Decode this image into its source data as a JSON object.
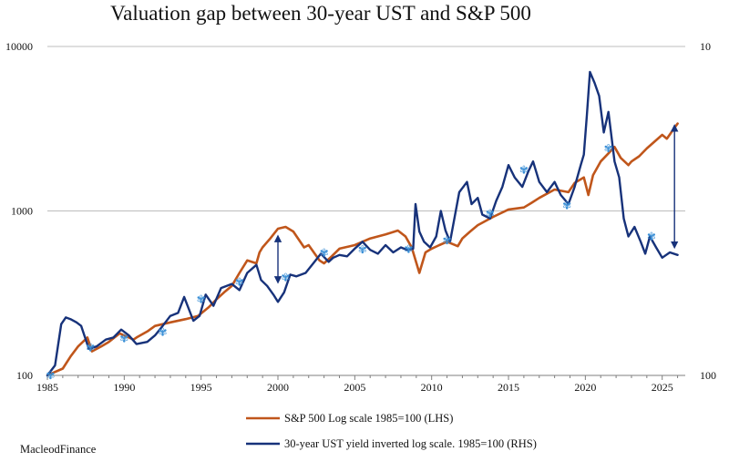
{
  "title": "Valuation gap between 30-year UST and S&P 500",
  "credit": "MacleodFinance",
  "colors": {
    "sp500": "#c0561b",
    "ust": "#17327a",
    "gap_arrow": "#17327a",
    "gridline": "#bdbdbd",
    "axis": "#7f7f7f",
    "marker": "#3a8fd6"
  },
  "chart_data": {
    "type": "line",
    "title": "Valuation gap between 30-year UST and S&P 500",
    "x_ticks": [
      "1985",
      "1990",
      "1995",
      "2000",
      "2005",
      "2010",
      "2015",
      "2020",
      "2025"
    ],
    "left_axis": {
      "scale": "log",
      "ylim": [
        100,
        10000
      ],
      "tick_labels": [
        "100",
        "1000",
        "10000"
      ]
    },
    "right_axis": {
      "scale": "log",
      "tick_labels": [
        "100",
        "10"
      ]
    },
    "xlim": [
      1985,
      2026.5
    ],
    "grid": true,
    "legend_position": "bottom-center",
    "series": [
      {
        "name": "S&P 500 Log scale 1985=100 (LHS)",
        "axis": "left",
        "x": [
          1985,
          1985.5,
          1986,
          1986.5,
          1987,
          1987.6,
          1987.9,
          1988.5,
          1989,
          1989.7,
          1990,
          1990.6,
          1990.8,
          1991.5,
          1992,
          1993,
          1994,
          1994.8,
          1995.5,
          1996,
          1996.5,
          1997,
          1997.5,
          1998,
          1998.6,
          1998.8,
          1999,
          1999.5,
          2000,
          2000.5,
          2001,
          2001.7,
          2002,
          2002.7,
          2003,
          2003.5,
          2004,
          2005,
          2006,
          2007,
          2007.8,
          2008.3,
          2008.7,
          2009.2,
          2009.6,
          2010,
          2010.5,
          2011,
          2011.7,
          2012,
          2012.5,
          2013,
          2014,
          2015,
          2016,
          2016.5,
          2017,
          2018,
          2018.9,
          2019.3,
          2019.9,
          2020.2,
          2020.5,
          2021,
          2021.9,
          2022.3,
          2022.8,
          2023,
          2023.5,
          2024,
          2025,
          2025.3,
          2025.8,
          2026
        ],
        "values": [
          100,
          105,
          110,
          130,
          150,
          170,
          140,
          150,
          160,
          180,
          175,
          165,
          170,
          185,
          200,
          210,
          220,
          230,
          260,
          290,
          320,
          350,
          420,
          500,
          480,
          560,
          600,
          680,
          780,
          800,
          750,
          600,
          620,
          500,
          480,
          530,
          590,
          620,
          680,
          720,
          760,
          700,
          600,
          420,
          560,
          590,
          620,
          650,
          610,
          680,
          750,
          820,
          920,
          1020,
          1050,
          1120,
          1200,
          1350,
          1300,
          1480,
          1600,
          1250,
          1650,
          2000,
          2450,
          2100,
          1900,
          2000,
          2150,
          2400,
          2900,
          2750,
          3200,
          3400
        ]
      },
      {
        "name": "30-year UST yield inverted log scale. 1985=100 (RHS)",
        "axis": "right",
        "x": [
          1985,
          1985.5,
          1985.9,
          1986.2,
          1986.5,
          1986.9,
          1987.2,
          1987.7,
          1988.2,
          1988.8,
          1989.3,
          1989.8,
          1990.3,
          1990.8,
          1991.5,
          1992,
          1992.5,
          1993,
          1993.5,
          1993.9,
          1994.5,
          1994.9,
          1995.3,
          1995.8,
          1996.3,
          1997,
          1997.5,
          1998,
          1998.6,
          1998.9,
          1999.3,
          1999.7,
          2000,
          2000.4,
          2000.8,
          2001.2,
          2001.8,
          2002.3,
          2002.8,
          2003.3,
          2003.6,
          2004,
          2004.5,
          2005,
          2005.5,
          2006,
          2006.5,
          2007,
          2007.5,
          2008,
          2008.4,
          2008.8,
          2008.95,
          2009.2,
          2009.5,
          2009.9,
          2010.3,
          2010.6,
          2010.9,
          2011.2,
          2011.8,
          2012.3,
          2012.6,
          2013,
          2013.3,
          2013.8,
          2014.2,
          2014.6,
          2015,
          2015.4,
          2015.9,
          2016.3,
          2016.6,
          2017,
          2017.5,
          2018,
          2018.4,
          2018.9,
          2019.3,
          2019.7,
          2019.9,
          2020.1,
          2020.3,
          2020.6,
          2020.9,
          2021.2,
          2021.5,
          2021.9,
          2022.2,
          2022.5,
          2022.8,
          2023.2,
          2023.6,
          2023.9,
          2024.2,
          2024.6,
          2025,
          2025.5,
          2026
        ],
        "values": [
          100,
          115,
          205,
          225,
          220,
          210,
          200,
          145,
          150,
          165,
          170,
          190,
          175,
          155,
          160,
          175,
          200,
          230,
          240,
          300,
          215,
          230,
          310,
          265,
          340,
          360,
          330,
          420,
          470,
          380,
          350,
          310,
          280,
          320,
          410,
          400,
          420,
          480,
          550,
          490,
          520,
          540,
          530,
          590,
          650,
          580,
          550,
          620,
          560,
          600,
          580,
          590,
          1100,
          750,
          650,
          600,
          700,
          1000,
          760,
          650,
          1300,
          1500,
          1100,
          1200,
          950,
          900,
          1150,
          1400,
          1900,
          1600,
          1400,
          1750,
          2000,
          1500,
          1300,
          1500,
          1250,
          1100,
          1400,
          1900,
          2200,
          3800,
          7000,
          6000,
          5000,
          3000,
          4000,
          2000,
          1600,
          900,
          700,
          800,
          650,
          550,
          700,
          600,
          520,
          560,
          540
        ]
      }
    ],
    "annotations": [
      {
        "type": "gap-arrow",
        "x": 2000,
        "from": 380,
        "to": 680
      },
      {
        "type": "gap-arrow",
        "x": 2025.8,
        "from": 620,
        "to": 3200
      }
    ]
  },
  "markers": {
    "note": "✾",
    "points": [
      {
        "x": 1985.2,
        "v": 100
      },
      {
        "x": 1987.8,
        "v": 148
      },
      {
        "x": 1990,
        "v": 168
      },
      {
        "x": 1992.5,
        "v": 183
      },
      {
        "x": 1995,
        "v": 290
      },
      {
        "x": 1997.5,
        "v": 370
      },
      {
        "x": 2000.5,
        "v": 395
      },
      {
        "x": 2003,
        "v": 555
      },
      {
        "x": 2005.5,
        "v": 580
      },
      {
        "x": 2008.5,
        "v": 585
      },
      {
        "x": 2011,
        "v": 660
      },
      {
        "x": 2013.8,
        "v": 960
      },
      {
        "x": 2016,
        "v": 1780
      },
      {
        "x": 2018.8,
        "v": 1080
      },
      {
        "x": 2021.5,
        "v": 2400
      },
      {
        "x": 2024.3,
        "v": 700
      }
    ]
  },
  "legend": [
    {
      "label": "S&P 500 Log scale 1985=100 (LHS)",
      "series": "sp500"
    },
    {
      "label": "30-year UST yield inverted log scale. 1985=100 (RHS)",
      "series": "ust"
    }
  ]
}
